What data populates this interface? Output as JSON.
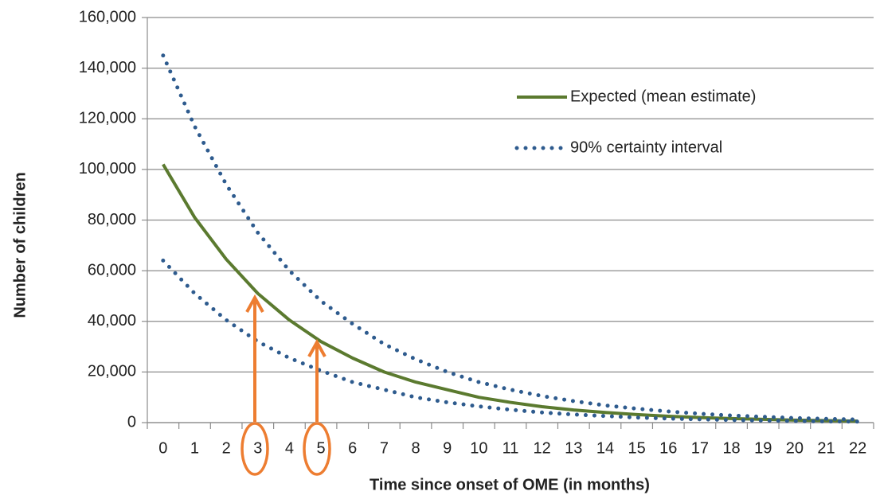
{
  "chart_data": {
    "type": "line",
    "x_label": "Time since onset of OME (in months)",
    "y_label": "Number of children",
    "categories": [
      0,
      1,
      2,
      3,
      4,
      5,
      6,
      7,
      8,
      9,
      10,
      11,
      12,
      13,
      14,
      15,
      16,
      17,
      18,
      19,
      20,
      21,
      22
    ],
    "ylim": [
      0,
      160000
    ],
    "yticks": [
      0,
      {
        "value": 20000,
        "label": "20,000"
      },
      {
        "value": 40000,
        "label": "40,000"
      },
      {
        "value": 60000,
        "label": "60,000"
      },
      {
        "value": 80000,
        "label": "80,000"
      },
      {
        "value": 100000,
        "label": "100,000"
      },
      {
        "value": 120000,
        "label": "120,000"
      },
      {
        "value": 140000,
        "label": "140,000"
      },
      {
        "value": 160000,
        "label": "160,000"
      }
    ],
    "grid": true,
    "legend": "upper right",
    "series": [
      {
        "name": "Expected (mean estimate)",
        "color": "#5b7a2f",
        "values": [
          102000,
          81000,
          64500,
          51000,
          40500,
          32000,
          25500,
          20000,
          16000,
          13000,
          10000,
          8000,
          6300,
          5000,
          4000,
          3200,
          2500,
          2000,
          1600,
          1300,
          1000,
          800,
          600
        ]
      },
      {
        "name": "90% certainty interval",
        "color": "#2e5b8e",
        "upper": [
          145000,
          117000,
          94000,
          75000,
          60000,
          48000,
          39000,
          31000,
          25000,
          20000,
          16000,
          13000,
          10500,
          8500,
          6800,
          5500,
          4400,
          3500,
          2800,
          2300,
          1800,
          1500,
          1200
        ],
        "lower": [
          64000,
          51000,
          40500,
          32000,
          25500,
          20500,
          16000,
          13000,
          10000,
          8000,
          6400,
          5100,
          4000,
          3200,
          2600,
          2000,
          1600,
          1300,
          1000,
          800,
          650,
          500,
          400
        ]
      }
    ]
  }
}
